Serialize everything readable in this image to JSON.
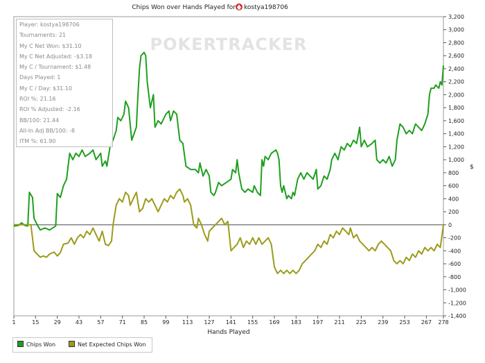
{
  "chart_data": {
    "type": "line",
    "title": "Chips Won over Hands Played for ",
    "player_name": "kostya198706",
    "xlabel": "Hands Played",
    "ylabel": "$",
    "xlim": [
      1,
      278
    ],
    "ylim": [
      -1400,
      3200
    ],
    "x_ticks": [
      1,
      15,
      29,
      43,
      57,
      71,
      85,
      99,
      113,
      127,
      141,
      155,
      169,
      183,
      197,
      211,
      225,
      239,
      253,
      267,
      278
    ],
    "y_ticks": [
      3200,
      3000,
      2800,
      2600,
      2400,
      2200,
      2000,
      1800,
      1600,
      1400,
      1200,
      1000,
      800,
      600,
      400,
      200,
      0,
      -200,
      -400,
      -600,
      -800,
      -1000,
      -1200,
      -1400
    ],
    "y_tick_labels": [
      "3,200",
      "3,000",
      "2,800",
      "2,600",
      "2,400",
      "2,200",
      "2,000",
      "1,800",
      "1,600",
      "1,400",
      "1,200",
      "1,000",
      "800",
      "600",
      "400",
      "200",
      "0",
      "-200",
      "-400",
      "-600",
      "-800",
      "-1,000",
      "-1,200",
      "-1,400"
    ],
    "watermark": "POKERTRACKER",
    "series": [
      {
        "name": "Chips Won",
        "color": "#1f9e1f",
        "points": [
          [
            1,
            -20
          ],
          [
            4,
            -10
          ],
          [
            6,
            30
          ],
          [
            8,
            -10
          ],
          [
            10,
            -20
          ],
          [
            11,
            500
          ],
          [
            13,
            420
          ],
          [
            14,
            100
          ],
          [
            16,
            0
          ],
          [
            18,
            -80
          ],
          [
            21,
            -50
          ],
          [
            24,
            -80
          ],
          [
            28,
            -20
          ],
          [
            29,
            480
          ],
          [
            31,
            420
          ],
          [
            33,
            600
          ],
          [
            35,
            700
          ],
          [
            36,
            900
          ],
          [
            37,
            1100
          ],
          [
            39,
            1000
          ],
          [
            41,
            1100
          ],
          [
            43,
            1050
          ],
          [
            45,
            1150
          ],
          [
            47,
            1050
          ],
          [
            50,
            1100
          ],
          [
            52,
            1150
          ],
          [
            54,
            1000
          ],
          [
            57,
            1100
          ],
          [
            58,
            900
          ],
          [
            60,
            980
          ],
          [
            61,
            900
          ],
          [
            63,
            1200
          ],
          [
            65,
            1300
          ],
          [
            67,
            1450
          ],
          [
            68,
            1650
          ],
          [
            70,
            1600
          ],
          [
            72,
            1700
          ],
          [
            73,
            1900
          ],
          [
            75,
            1800
          ],
          [
            77,
            1300
          ],
          [
            80,
            1500
          ],
          [
            81,
            2000
          ],
          [
            82,
            2400
          ],
          [
            83,
            2600
          ],
          [
            85,
            2650
          ],
          [
            86,
            2600
          ],
          [
            87,
            2200
          ],
          [
            89,
            1800
          ],
          [
            91,
            2000
          ],
          [
            92,
            1500
          ],
          [
            94,
            1600
          ],
          [
            96,
            1550
          ],
          [
            99,
            1700
          ],
          [
            101,
            1750
          ],
          [
            102,
            1600
          ],
          [
            104,
            1750
          ],
          [
            106,
            1700
          ],
          [
            108,
            1300
          ],
          [
            110,
            1250
          ],
          [
            112,
            900
          ],
          [
            115,
            850
          ],
          [
            118,
            850
          ],
          [
            120,
            800
          ],
          [
            121,
            950
          ],
          [
            123,
            750
          ],
          [
            125,
            850
          ],
          [
            127,
            750
          ],
          [
            128,
            500
          ],
          [
            130,
            450
          ],
          [
            131,
            500
          ],
          [
            133,
            650
          ],
          [
            135,
            600
          ],
          [
            138,
            650
          ],
          [
            141,
            700
          ],
          [
            142,
            850
          ],
          [
            144,
            800
          ],
          [
            145,
            1000
          ],
          [
            146,
            800
          ],
          [
            148,
            550
          ],
          [
            150,
            500
          ],
          [
            152,
            550
          ],
          [
            155,
            500
          ],
          [
            156,
            600
          ],
          [
            158,
            500
          ],
          [
            160,
            450
          ],
          [
            161,
            1000
          ],
          [
            162,
            900
          ],
          [
            163,
            1050
          ],
          [
            165,
            1000
          ],
          [
            167,
            1100
          ],
          [
            170,
            1150
          ],
          [
            171,
            1100
          ],
          [
            172,
            1000
          ],
          [
            173,
            600
          ],
          [
            174,
            500
          ],
          [
            175,
            600
          ],
          [
            177,
            400
          ],
          [
            178,
            450
          ],
          [
            180,
            400
          ],
          [
            181,
            500
          ],
          [
            182,
            450
          ],
          [
            184,
            700
          ],
          [
            186,
            800
          ],
          [
            188,
            700
          ],
          [
            190,
            800
          ],
          [
            192,
            750
          ],
          [
            194,
            700
          ],
          [
            196,
            850
          ],
          [
            197,
            550
          ],
          [
            199,
            600
          ],
          [
            201,
            750
          ],
          [
            203,
            700
          ],
          [
            205,
            850
          ],
          [
            206,
            1000
          ],
          [
            208,
            1100
          ],
          [
            210,
            1000
          ],
          [
            212,
            1200
          ],
          [
            214,
            1150
          ],
          [
            216,
            1250
          ],
          [
            218,
            1200
          ],
          [
            220,
            1300
          ],
          [
            222,
            1250
          ],
          [
            224,
            1500
          ],
          [
            225,
            1200
          ],
          [
            227,
            1300
          ],
          [
            229,
            1200
          ],
          [
            232,
            1250
          ],
          [
            234,
            1300
          ],
          [
            235,
            1000
          ],
          [
            237,
            950
          ],
          [
            239,
            1000
          ],
          [
            241,
            950
          ],
          [
            243,
            1050
          ],
          [
            245,
            900
          ],
          [
            247,
            1000
          ],
          [
            248,
            1300
          ],
          [
            250,
            1550
          ],
          [
            252,
            1500
          ],
          [
            254,
            1400
          ],
          [
            256,
            1450
          ],
          [
            258,
            1400
          ],
          [
            260,
            1550
          ],
          [
            262,
            1500
          ],
          [
            264,
            1450
          ],
          [
            266,
            1550
          ],
          [
            268,
            1700
          ],
          [
            269,
            2000
          ],
          [
            270,
            2100
          ],
          [
            272,
            2100
          ],
          [
            273,
            2150
          ],
          [
            275,
            2100
          ],
          [
            276,
            2200
          ],
          [
            277,
            2150
          ],
          [
            278,
            2450
          ]
        ]
      },
      {
        "name": "Net Expected Chips Won",
        "color": "#9b9b19",
        "points": [
          [
            1,
            0
          ],
          [
            12,
            0
          ],
          [
            14,
            -400
          ],
          [
            16,
            -450
          ],
          [
            18,
            -500
          ],
          [
            20,
            -480
          ],
          [
            22,
            -500
          ],
          [
            24,
            -450
          ],
          [
            27,
            -420
          ],
          [
            29,
            -480
          ],
          [
            31,
            -430
          ],
          [
            33,
            -300
          ],
          [
            36,
            -280
          ],
          [
            38,
            -200
          ],
          [
            40,
            -300
          ],
          [
            42,
            -200
          ],
          [
            44,
            -150
          ],
          [
            46,
            -200
          ],
          [
            48,
            -100
          ],
          [
            50,
            -150
          ],
          [
            52,
            -50
          ],
          [
            54,
            -150
          ],
          [
            56,
            -250
          ],
          [
            58,
            -100
          ],
          [
            60,
            -300
          ],
          [
            62,
            -320
          ],
          [
            64,
            -250
          ],
          [
            65,
            0
          ],
          [
            67,
            300
          ],
          [
            69,
            400
          ],
          [
            71,
            350
          ],
          [
            73,
            500
          ],
          [
            75,
            450
          ],
          [
            76,
            300
          ],
          [
            78,
            400
          ],
          [
            80,
            500
          ],
          [
            82,
            200
          ],
          [
            84,
            250
          ],
          [
            86,
            400
          ],
          [
            88,
            350
          ],
          [
            90,
            400
          ],
          [
            92,
            300
          ],
          [
            94,
            200
          ],
          [
            96,
            300
          ],
          [
            98,
            400
          ],
          [
            100,
            350
          ],
          [
            102,
            450
          ],
          [
            104,
            400
          ],
          [
            106,
            500
          ],
          [
            108,
            550
          ],
          [
            110,
            450
          ],
          [
            111,
            350
          ],
          [
            113,
            400
          ],
          [
            115,
            300
          ],
          [
            117,
            0
          ],
          [
            119,
            -50
          ],
          [
            120,
            100
          ],
          [
            122,
            0
          ],
          [
            124,
            -150
          ],
          [
            126,
            -250
          ],
          [
            127,
            -100
          ],
          [
            129,
            -50
          ],
          [
            131,
            0
          ],
          [
            133,
            50
          ],
          [
            135,
            100
          ],
          [
            137,
            0
          ],
          [
            139,
            50
          ],
          [
            141,
            -400
          ],
          [
            143,
            -350
          ],
          [
            145,
            -300
          ],
          [
            147,
            -200
          ],
          [
            149,
            -350
          ],
          [
            151,
            -250
          ],
          [
            153,
            -300
          ],
          [
            155,
            -200
          ],
          [
            157,
            -300
          ],
          [
            159,
            -200
          ],
          [
            161,
            -300
          ],
          [
            163,
            -250
          ],
          [
            165,
            -200
          ],
          [
            167,
            -300
          ],
          [
            169,
            -650
          ],
          [
            171,
            -750
          ],
          [
            173,
            -700
          ],
          [
            175,
            -750
          ],
          [
            177,
            -700
          ],
          [
            179,
            -750
          ],
          [
            181,
            -700
          ],
          [
            183,
            -750
          ],
          [
            185,
            -700
          ],
          [
            187,
            -600
          ],
          [
            189,
            -550
          ],
          [
            191,
            -500
          ],
          [
            193,
            -450
          ],
          [
            195,
            -400
          ],
          [
            197,
            -300
          ],
          [
            199,
            -350
          ],
          [
            201,
            -250
          ],
          [
            203,
            -300
          ],
          [
            205,
            -150
          ],
          [
            207,
            -200
          ],
          [
            209,
            -100
          ],
          [
            211,
            -150
          ],
          [
            213,
            -50
          ],
          [
            215,
            -100
          ],
          [
            217,
            -150
          ],
          [
            218,
            -50
          ],
          [
            220,
            -200
          ],
          [
            222,
            -150
          ],
          [
            224,
            -250
          ],
          [
            226,
            -300
          ],
          [
            228,
            -350
          ],
          [
            230,
            -400
          ],
          [
            232,
            -350
          ],
          [
            234,
            -400
          ],
          [
            236,
            -300
          ],
          [
            238,
            -250
          ],
          [
            240,
            -300
          ],
          [
            242,
            -350
          ],
          [
            244,
            -400
          ],
          [
            246,
            -550
          ],
          [
            248,
            -600
          ],
          [
            250,
            -550
          ],
          [
            252,
            -600
          ],
          [
            254,
            -500
          ],
          [
            256,
            -550
          ],
          [
            258,
            -450
          ],
          [
            260,
            -500
          ],
          [
            262,
            -400
          ],
          [
            264,
            -450
          ],
          [
            266,
            -350
          ],
          [
            268,
            -400
          ],
          [
            270,
            -350
          ],
          [
            272,
            -400
          ],
          [
            274,
            -300
          ],
          [
            276,
            -350
          ],
          [
            278,
            0
          ]
        ]
      }
    ]
  },
  "stats": [
    "Player: kostya198706",
    "Tournaments: 21",
    "My C Net Won: $31.10",
    "My C Net Adjusted: -$3.18",
    "My C / Tournament: $1.48",
    "Days Played: 1",
    "My C / Day: $31.10",
    "ROI %: 21.16",
    "ROI % Adjusted: -2.16",
    "BB/100: 21.44",
    "All-In Adj BB/100: -8",
    "ITM %: 61.90"
  ],
  "legend": {
    "chips_won": "Chips Won",
    "net_expected": "Net Expected Chips Won",
    "chips_won_color": "#1f9e1f",
    "net_expected_color": "#9b9b19"
  }
}
